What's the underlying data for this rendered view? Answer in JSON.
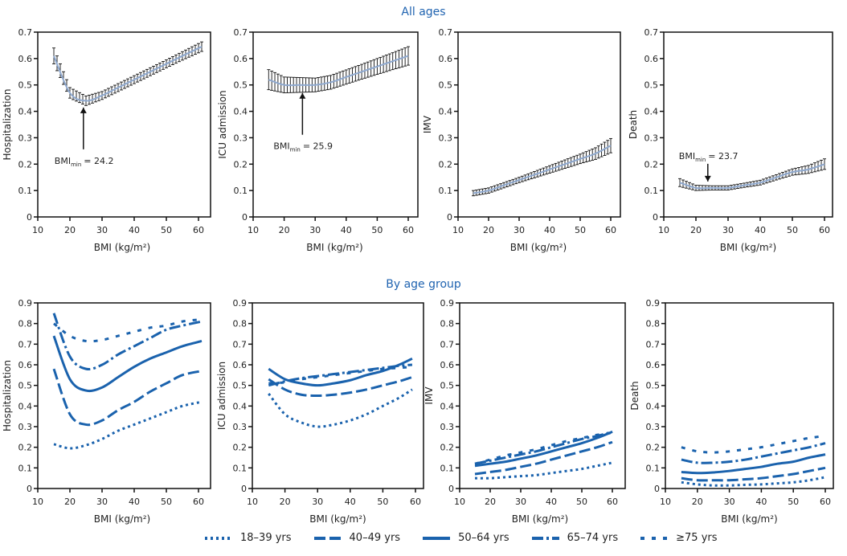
{
  "colors": {
    "line": "#1a62ad",
    "title": "#1f63b0",
    "axis": "#111111"
  },
  "sections": {
    "top_title": "All ages",
    "bottom_title": "By age group"
  },
  "legend": [
    {
      "label": "18–39 yrs",
      "dash": "3 4"
    },
    {
      "label": "40–49 yrs",
      "dash": "14 5"
    },
    {
      "label": "50–64 yrs",
      "dash": ""
    },
    {
      "label": "65–74 yrs",
      "dash": "14 4 3 4"
    },
    {
      "label": "≥75 yrs",
      "dash": "5 9"
    }
  ],
  "chart_data": [
    {
      "type": "line",
      "group": "All ages",
      "ylabel": "Hospitalization",
      "xlabel": "BMI (kg/m²)",
      "xlim": [
        10,
        60
      ],
      "xticks": [
        10,
        20,
        30,
        40,
        50,
        60
      ],
      "ylim": [
        0,
        0.7
      ],
      "yticks": [
        "0",
        "0.1",
        "0.2",
        "0.3",
        "0.4",
        "0.5",
        "0.6",
        "0.7"
      ],
      "x": [
        15,
        20,
        25,
        30,
        35,
        40,
        45,
        50,
        55,
        61
      ],
      "y": [
        0.61,
        0.47,
        0.44,
        0.46,
        0.49,
        0.52,
        0.55,
        0.58,
        0.61,
        0.645
      ],
      "ci": [
        0.03,
        0.02,
        0.018,
        0.015,
        0.015,
        0.015,
        0.015,
        0.015,
        0.016,
        0.018
      ],
      "annotation": {
        "text": "BMI",
        "sub": "min",
        "value": "= 24.2",
        "bmi": 24.2,
        "place": "below"
      }
    },
    {
      "type": "line",
      "group": "All ages",
      "ylabel": "ICU admission",
      "xlabel": "BMI (kg/m²)",
      "xlim": [
        10,
        60
      ],
      "xticks": [
        10,
        20,
        30,
        40,
        50,
        60
      ],
      "ylim": [
        0,
        0.7
      ],
      "yticks": [
        "0",
        "0.1",
        "0.2",
        "0.3",
        "0.4",
        "0.5",
        "0.6",
        "0.7"
      ],
      "x": [
        15,
        20,
        25,
        30,
        35,
        40,
        45,
        50,
        55,
        60
      ],
      "y": [
        0.52,
        0.5,
        0.5,
        0.5,
        0.51,
        0.53,
        0.55,
        0.57,
        0.59,
        0.61
      ],
      "ci": [
        0.038,
        0.03,
        0.028,
        0.026,
        0.026,
        0.027,
        0.028,
        0.03,
        0.032,
        0.035
      ],
      "annotation": {
        "text": "BMI",
        "sub": "min",
        "value": "= 25.9",
        "bmi": 25.9,
        "place": "below"
      }
    },
    {
      "type": "line",
      "group": "All ages",
      "ylabel": "IMV",
      "xlabel": "BMI (kg/m²)",
      "xlim": [
        10,
        60
      ],
      "xticks": [
        10,
        20,
        30,
        40,
        50,
        60
      ],
      "ylim": [
        0,
        0.7
      ],
      "yticks": [
        "0",
        "0.1",
        "0.2",
        "0.3",
        "0.4",
        "0.5",
        "0.6",
        "0.7"
      ],
      "x": [
        15,
        20,
        25,
        30,
        35,
        40,
        45,
        50,
        55,
        60
      ],
      "y": [
        0.09,
        0.1,
        0.12,
        0.14,
        0.16,
        0.18,
        0.2,
        0.22,
        0.24,
        0.27
      ],
      "ci": [
        0.01,
        0.01,
        0.01,
        0.01,
        0.012,
        0.014,
        0.016,
        0.018,
        0.022,
        0.027
      ]
    },
    {
      "type": "line",
      "group": "All ages",
      "ylabel": "Death",
      "xlabel": "BMI (kg/m²)",
      "xlim": [
        10,
        60
      ],
      "xticks": [
        10,
        20,
        30,
        40,
        50,
        60
      ],
      "ylim": [
        0,
        0.7
      ],
      "yticks": [
        "0",
        "0.1",
        "0.2",
        "0.3",
        "0.4",
        "0.5",
        "0.6",
        "0.7"
      ],
      "x": [
        15,
        20,
        25,
        30,
        35,
        40,
        45,
        50,
        55,
        60
      ],
      "y": [
        0.13,
        0.11,
        0.11,
        0.11,
        0.12,
        0.13,
        0.15,
        0.17,
        0.18,
        0.2
      ],
      "ci": [
        0.015,
        0.01,
        0.008,
        0.008,
        0.008,
        0.009,
        0.01,
        0.012,
        0.015,
        0.02
      ],
      "annotation": {
        "text": "BMI",
        "sub": "min",
        "value": "= 23.7",
        "bmi": 23.7,
        "place": "above"
      }
    },
    {
      "type": "line",
      "group": "By age group",
      "ylabel": "Hospitalization",
      "xlabel": "BMI (kg/m²)",
      "xlim": [
        10,
        60
      ],
      "xticks": [
        10,
        20,
        30,
        40,
        50,
        60
      ],
      "ylim": [
        0,
        0.9
      ],
      "yticks": [
        "0",
        "0.1",
        "0.2",
        "0.3",
        "0.4",
        "0.5",
        "0.6",
        "0.7",
        "0.8",
        "0.9"
      ],
      "x": [
        15,
        20,
        25,
        30,
        35,
        40,
        45,
        50,
        55,
        61
      ],
      "series": [
        {
          "name": "18–39 yrs",
          "values": [
            0.215,
            0.195,
            0.21,
            0.24,
            0.28,
            0.31,
            0.34,
            0.37,
            0.4,
            0.42
          ]
        },
        {
          "name": "40–49 yrs",
          "values": [
            0.58,
            0.36,
            0.31,
            0.33,
            0.38,
            0.42,
            0.47,
            0.51,
            0.55,
            0.57
          ]
        },
        {
          "name": "50–64 yrs",
          "values": [
            0.74,
            0.53,
            0.475,
            0.49,
            0.54,
            0.59,
            0.63,
            0.66,
            0.69,
            0.715
          ]
        },
        {
          "name": "65–74 yrs",
          "values": [
            0.85,
            0.64,
            0.58,
            0.6,
            0.65,
            0.69,
            0.73,
            0.77,
            0.79,
            0.81
          ]
        },
        {
          "name": "≥75 yrs",
          "values": [
            0.8,
            0.74,
            0.715,
            0.72,
            0.74,
            0.76,
            0.78,
            0.79,
            0.81,
            0.82
          ]
        }
      ]
    },
    {
      "type": "line",
      "group": "By age group",
      "ylabel": "ICU admission",
      "xlabel": "BMI (kg/m²)",
      "xlim": [
        10,
        60
      ],
      "xticks": [
        10,
        20,
        30,
        40,
        50,
        60
      ],
      "ylim": [
        0,
        0.9
      ],
      "yticks": [
        "0",
        "0.1",
        "0.2",
        "0.3",
        "0.4",
        "0.5",
        "0.6",
        "0.7",
        "0.8",
        "0.9"
      ],
      "x": [
        15,
        20,
        25,
        30,
        35,
        40,
        45,
        50,
        55,
        59
      ],
      "series": [
        {
          "name": "18–39 yrs",
          "values": [
            0.46,
            0.36,
            0.32,
            0.3,
            0.31,
            0.33,
            0.36,
            0.4,
            0.44,
            0.48
          ]
        },
        {
          "name": "40–49 yrs",
          "values": [
            0.53,
            0.48,
            0.455,
            0.45,
            0.455,
            0.465,
            0.48,
            0.5,
            0.52,
            0.54
          ]
        },
        {
          "name": "50–64 yrs",
          "values": [
            0.58,
            0.53,
            0.51,
            0.5,
            0.51,
            0.525,
            0.55,
            0.57,
            0.6,
            0.63
          ]
        },
        {
          "name": "65–74 yrs",
          "values": [
            0.5,
            0.52,
            0.535,
            0.545,
            0.555,
            0.565,
            0.575,
            0.585,
            0.595,
            0.6
          ]
        },
        {
          "name": "≥75 yrs",
          "values": [
            0.51,
            0.515,
            0.53,
            0.54,
            0.55,
            0.56,
            0.57,
            0.58,
            0.585,
            0.59
          ]
        }
      ]
    },
    {
      "type": "line",
      "group": "By age group",
      "ylabel": "IMV",
      "xlabel": "BMI (kg/m²)",
      "xlim": [
        10,
        60
      ],
      "xticks": [
        10,
        20,
        30,
        40,
        50,
        60
      ],
      "ylim": [
        0,
        0.9
      ],
      "yticks": [
        "0",
        "0.1",
        "0.2",
        "0.3",
        "0.4",
        "0.5",
        "0.6",
        "0.7",
        "0.8",
        "0.9"
      ],
      "x": [
        15,
        20,
        25,
        30,
        35,
        40,
        45,
        50,
        55,
        60
      ],
      "series": [
        {
          "name": "18–39 yrs",
          "values": [
            0.05,
            0.05,
            0.055,
            0.06,
            0.065,
            0.075,
            0.085,
            0.095,
            0.11,
            0.125
          ]
        },
        {
          "name": "40–49 yrs",
          "values": [
            0.07,
            0.08,
            0.09,
            0.105,
            0.12,
            0.14,
            0.16,
            0.18,
            0.2,
            0.225
          ]
        },
        {
          "name": "50–64 yrs",
          "values": [
            0.11,
            0.12,
            0.13,
            0.145,
            0.16,
            0.18,
            0.2,
            0.22,
            0.245,
            0.275
          ]
        },
        {
          "name": "65–74 yrs",
          "values": [
            0.12,
            0.135,
            0.15,
            0.165,
            0.18,
            0.2,
            0.22,
            0.24,
            0.255,
            0.275
          ]
        },
        {
          "name": "≥75 yrs",
          "values": [
            0.12,
            0.14,
            0.16,
            0.175,
            0.19,
            0.21,
            0.23,
            0.245,
            0.26,
            0.27
          ]
        }
      ]
    },
    {
      "type": "line",
      "group": "By age group",
      "ylabel": "Death",
      "xlabel": "BMI (kg/m²)",
      "xlim": [
        10,
        60
      ],
      "xticks": [
        10,
        20,
        30,
        40,
        50,
        60
      ],
      "ylim": [
        0,
        0.9
      ],
      "yticks": [
        "0",
        "0.1",
        "0.2",
        "0.3",
        "0.4",
        "0.5",
        "0.6",
        "0.7",
        "0.8",
        "0.9"
      ],
      "x": [
        15,
        20,
        25,
        30,
        35,
        40,
        45,
        50,
        55,
        60
      ],
      "series": [
        {
          "name": "18–39 yrs",
          "values": [
            0.03,
            0.02,
            0.015,
            0.015,
            0.018,
            0.02,
            0.025,
            0.03,
            0.04,
            0.055
          ]
        },
        {
          "name": "40–49 yrs",
          "values": [
            0.05,
            0.04,
            0.04,
            0.04,
            0.045,
            0.05,
            0.06,
            0.07,
            0.085,
            0.1
          ]
        },
        {
          "name": "50–64 yrs",
          "values": [
            0.08,
            0.075,
            0.078,
            0.085,
            0.095,
            0.105,
            0.12,
            0.13,
            0.15,
            0.165
          ]
        },
        {
          "name": "65–74 yrs",
          "values": [
            0.14,
            0.125,
            0.125,
            0.13,
            0.14,
            0.155,
            0.17,
            0.185,
            0.2,
            0.22
          ]
        },
        {
          "name": "≥75 yrs",
          "values": [
            0.2,
            0.18,
            0.175,
            0.18,
            0.19,
            0.2,
            0.215,
            0.23,
            0.245,
            0.255
          ]
        }
      ]
    }
  ]
}
